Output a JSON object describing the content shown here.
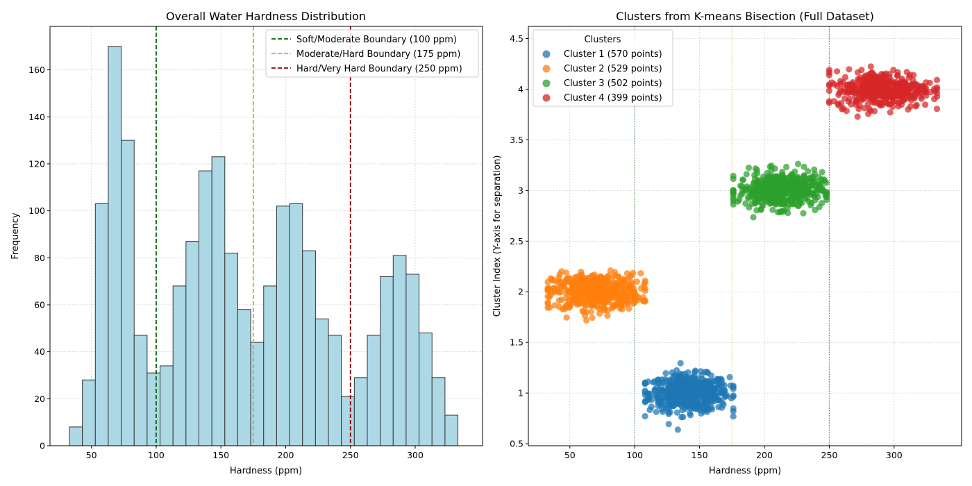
{
  "chart_data": [
    {
      "type": "bar",
      "title": "Overall Water Hardness Distribution",
      "xlabel": "Hardness (ppm)",
      "ylabel": "Frequency",
      "xlim": [
        18,
        352
      ],
      "ylim": [
        0,
        178.5
      ],
      "xticks": [
        50,
        100,
        150,
        200,
        250,
        300
      ],
      "yticks": [
        0,
        20,
        40,
        60,
        80,
        100,
        120,
        140,
        160
      ],
      "grid": true,
      "legend_position": "top-right",
      "bin_start": 33,
      "bin_width": 10,
      "values": [
        8,
        28,
        103,
        170,
        130,
        47,
        31,
        34,
        68,
        87,
        117,
        123,
        82,
        58,
        44,
        68,
        102,
        103,
        83,
        54,
        47,
        21,
        29,
        47,
        72,
        81,
        73,
        48,
        29,
        13
      ],
      "bar_color": "#add8e6",
      "edge_color": "#333333",
      "boundaries": [
        {
          "label": "Soft/Moderate Boundary (100 ppm)",
          "x": 100,
          "color": "#006400"
        },
        {
          "label": "Moderate/Hard Boundary (175 ppm)",
          "x": 175,
          "color": "#daa520"
        },
        {
          "label": "Hard/Very Hard Boundary (250 ppm)",
          "x": 250,
          "color": "#8b0000"
        }
      ]
    },
    {
      "type": "scatter",
      "title": "Clusters from K-means Bisection (Full Dataset)",
      "xlabel": "Hardness (ppm)",
      "ylabel": "Cluster Index (Y-axis for separation)",
      "xlim": [
        18,
        352
      ],
      "ylim": [
        0.48,
        4.62
      ],
      "xticks": [
        50,
        100,
        150,
        200,
        250,
        300
      ],
      "yticks": [
        0.5,
        1.0,
        1.5,
        2.0,
        2.5,
        3.0,
        3.5,
        4.0,
        4.5
      ],
      "grid": true,
      "legend_title": "Clusters",
      "legend_position": "top-left",
      "boundaries": [
        {
          "x": 100,
          "color": "#006400"
        },
        {
          "x": 175,
          "color": "#daa520"
        },
        {
          "x": 250,
          "color": "#8b0000"
        }
      ],
      "series": [
        {
          "name": "Cluster 1 (570 points)",
          "count": 570,
          "y": 1,
          "x_range": [
            108,
            176
          ],
          "color": "#1f77b4"
        },
        {
          "name": "Cluster 2 (529 points)",
          "count": 529,
          "y": 2,
          "x_range": [
            33,
            108
          ],
          "color": "#ff7f0e"
        },
        {
          "name": "Cluster 3 (502 points)",
          "count": 502,
          "y": 3,
          "x_range": [
            176,
            248
          ],
          "color": "#2ca02c"
        },
        {
          "name": "Cluster 4 (399 points)",
          "count": 399,
          "y": 4,
          "x_range": [
            250,
            333
          ],
          "color": "#d62728"
        }
      ]
    }
  ]
}
